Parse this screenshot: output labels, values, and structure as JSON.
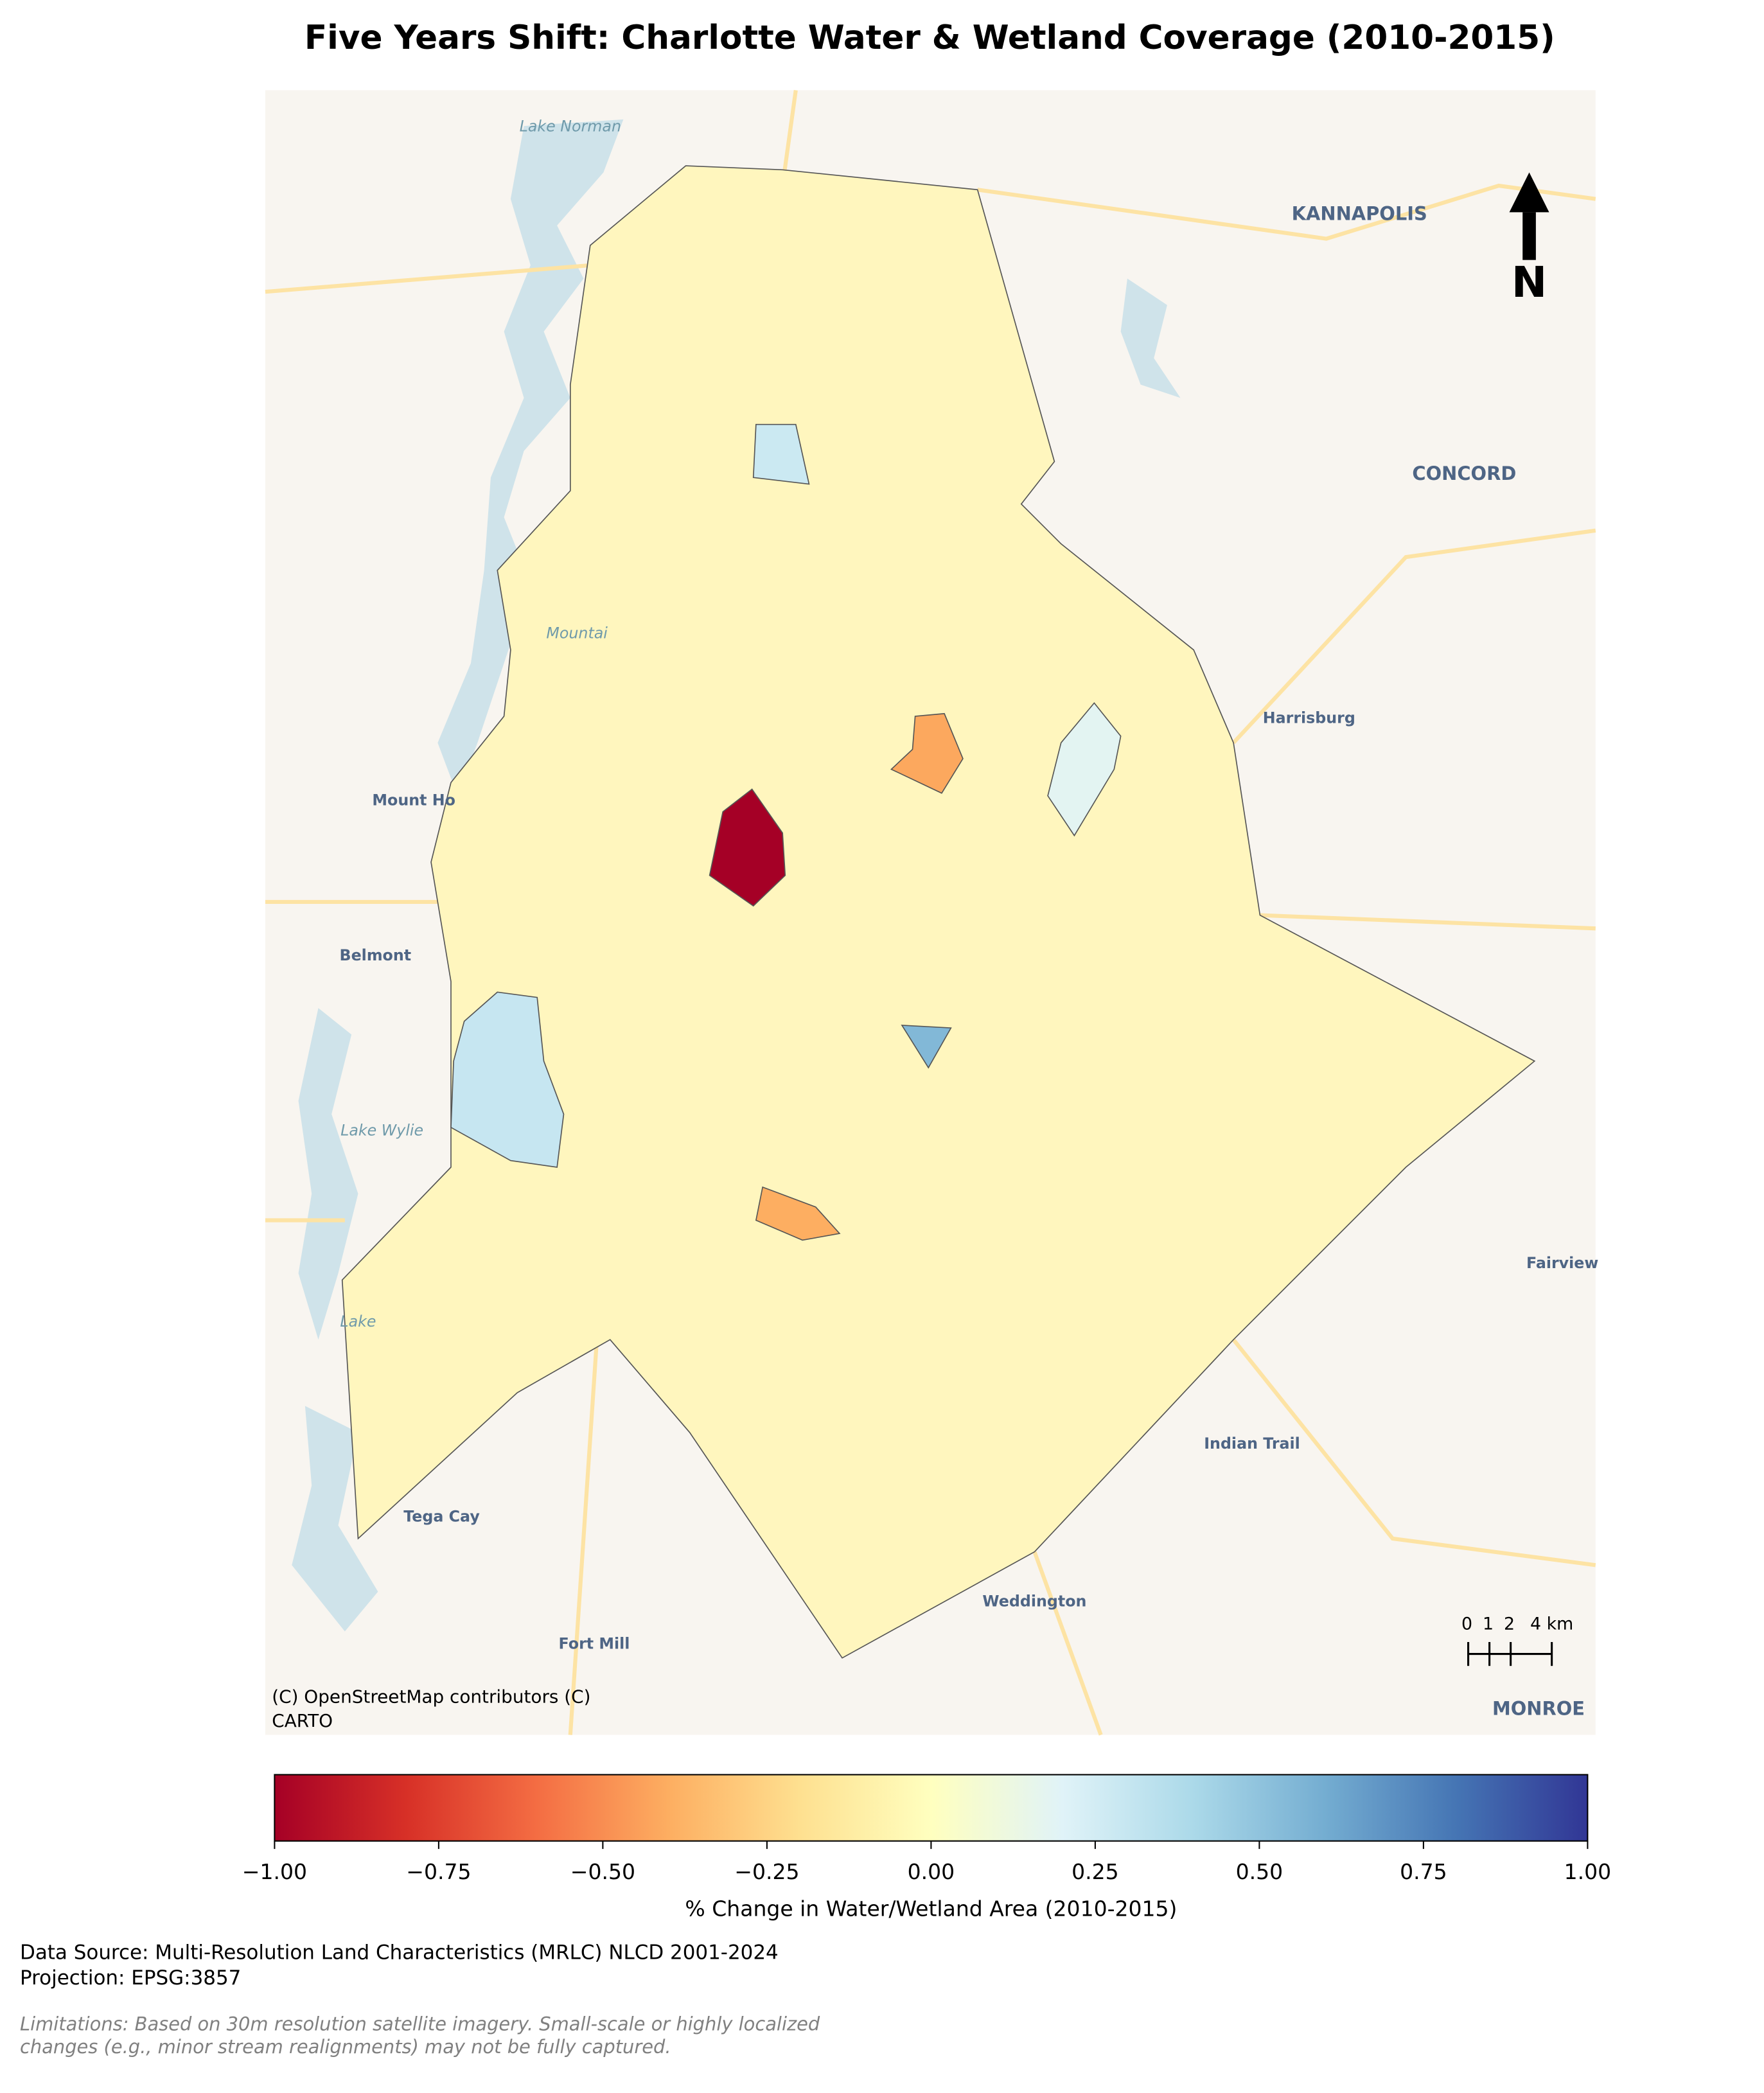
{
  "chart_data": {
    "type": "choropleth",
    "title": "Five Years Shift: Charlotte Water & Wetland Coverage (2010-2015)",
    "colormap": "RdYlBu",
    "clim": [
      -1,
      1
    ],
    "cticks": [
      {
        "value": -1,
        "label": "−1.00"
      },
      {
        "value": -0.75,
        "label": "−0.75"
      },
      {
        "value": -0.5,
        "label": "−0.50"
      },
      {
        "value": -0.25,
        "label": "−0.25"
      },
      {
        "value": 0,
        "label": "0.00"
      },
      {
        "value": 0.25,
        "label": "0.25"
      },
      {
        "value": 0.5,
        "label": "0.50"
      },
      {
        "value": 0.75,
        "label": "0.75"
      },
      {
        "value": 1,
        "label": "1.00"
      }
    ],
    "colorbar_label": "% Change in Water/Wetland Area (2010-2015)",
    "tract_values": [
      -1,
      -0.42,
      -0.4,
      0.55,
      0.3,
      0.28,
      0.18
    ],
    "places": [
      "Lake Norman",
      "KANNAPOLIS",
      "CONCORD",
      "Harrisburg",
      "Mount Ho",
      "Belmont",
      "Mountai",
      "Lake Wylie",
      "Lake",
      "Tega Cay",
      "Fort Mill",
      "Weddington",
      "Indian Trail",
      "Fairview",
      "MONROE"
    ],
    "north": "N",
    "scale_bar": [
      "0",
      "1",
      "2",
      "4 km"
    ],
    "attribution": [
      "(C) OpenStreetMap contributors (C)",
      "CARTO"
    ],
    "source": [
      "Data Source: Multi-Resolution Land Characteristics (MRLC) NLCD 2001-2024",
      "Projection: EPSG:3857"
    ],
    "limitations": [
      "Limitations: Based on 30m resolution satellite imagery. Small-scale or highly localized",
      "changes (e.g., minor stream realignments) may not be fully captured."
    ]
  }
}
